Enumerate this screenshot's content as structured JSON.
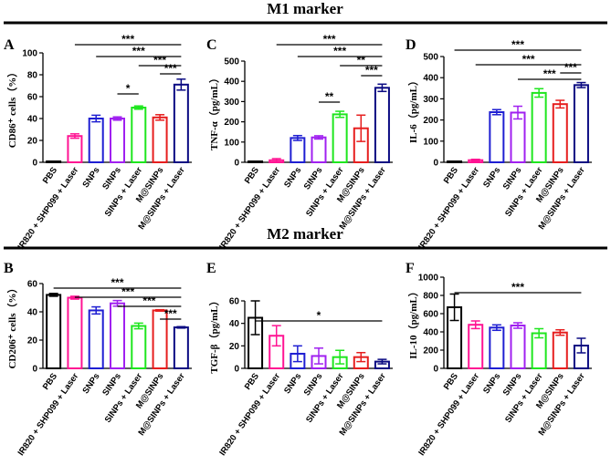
{
  "figure": {
    "sections": [
      {
        "title": "M1 marker"
      },
      {
        "title": "M2 marker"
      }
    ]
  },
  "chart_data": [
    {
      "panel": "A",
      "type": "bar",
      "section": "M1 marker",
      "ylabel": "CD86⁺ cells（%）",
      "ylim": [
        0,
        100
      ],
      "yticks": [
        0,
        20,
        40,
        60,
        80,
        100
      ],
      "categories": [
        "PBS",
        "IR820 + SHP099 + Laser",
        "SNPs",
        "SINPs",
        "SINPs + Laser",
        "M@SINPs",
        "M@SINPs + Laser"
      ],
      "values": [
        0.5,
        24,
        40,
        40,
        50,
        41,
        71
      ],
      "errors": [
        0.5,
        2,
        3,
        1.5,
        1.5,
        2.5,
        5
      ],
      "colors": [
        "#000000",
        "#ff1493",
        "#1e1ed2",
        "#a020f0",
        "#1ee61e",
        "#e61e1e",
        "#0a0a82"
      ],
      "significance": [
        {
          "from": 1,
          "to": 6,
          "label": "***"
        },
        {
          "from": 2,
          "to": 6,
          "label": "***"
        },
        {
          "from": 4,
          "to": 6,
          "label": "***"
        },
        {
          "from": 5,
          "to": 6,
          "label": "***"
        },
        {
          "from": 3,
          "to": 4,
          "label": "*"
        }
      ]
    },
    {
      "panel": "C",
      "type": "bar",
      "section": "M1 marker",
      "ylabel": "TNF-α（pg/mL）",
      "ylim": [
        0,
        500
      ],
      "yticks": [
        0,
        100,
        200,
        300,
        400,
        500
      ],
      "categories": [
        "PBS",
        "IR820 + SHP099 + Laser",
        "SNPs",
        "SINPs",
        "SINPs + Laser",
        "M@SINPs",
        "M@SINPs + Laser"
      ],
      "values": [
        2,
        10,
        120,
        123,
        237,
        168,
        368
      ],
      "errors": [
        1,
        8,
        12,
        8,
        15,
        65,
        18
      ],
      "colors": [
        "#000000",
        "#ff1493",
        "#1e1ed2",
        "#a020f0",
        "#1ee61e",
        "#e61e1e",
        "#0a0a82"
      ],
      "significance": [
        {
          "from": 1,
          "to": 6,
          "label": "***"
        },
        {
          "from": 2,
          "to": 6,
          "label": "***"
        },
        {
          "from": 4,
          "to": 6,
          "label": "**"
        },
        {
          "from": 5,
          "to": 6,
          "label": "***"
        },
        {
          "from": 3,
          "to": 4,
          "label": "**"
        }
      ]
    },
    {
      "panel": "D",
      "type": "bar",
      "section": "M1 marker",
      "ylabel": "IL-6（pg/mL）",
      "ylim": [
        0,
        500
      ],
      "yticks": [
        0,
        100,
        200,
        300,
        400,
        500
      ],
      "categories": [
        "PBS",
        "IR820 + SHP099 + Laser",
        "SNPs",
        "SINPs",
        "SINPs + Laser",
        "M@SINPs",
        "M@SINPs + Laser"
      ],
      "values": [
        2,
        10,
        237,
        235,
        328,
        275,
        365
      ],
      "errors": [
        1,
        4,
        12,
        30,
        20,
        18,
        12
      ],
      "colors": [
        "#000000",
        "#ff1493",
        "#1e1ed2",
        "#a020f0",
        "#1ee61e",
        "#e61e1e",
        "#0a0a82"
      ],
      "significance": [
        {
          "from": 0,
          "to": 6,
          "label": "***"
        },
        {
          "from": 1,
          "to": 6,
          "label": "***"
        },
        {
          "from": 3,
          "to": 6,
          "label": "***"
        },
        {
          "from": 5,
          "to": 6,
          "label": "***"
        }
      ]
    },
    {
      "panel": "B",
      "type": "bar",
      "section": "M2 marker",
      "ylabel": "CD206⁺ cells（%）",
      "ylim": [
        0,
        60
      ],
      "yticks": [
        0,
        20,
        40,
        60
      ],
      "categories": [
        "PBS",
        "IR820 + SHP099 + Laser",
        "SNPs",
        "SINPs",
        "SINPs + Laser",
        "M@SINPs",
        "M@SINPs + Laser"
      ],
      "values": [
        52,
        50,
        41,
        46,
        30,
        41,
        29
      ],
      "errors": [
        1,
        1,
        2.5,
        2,
        2,
        0.5,
        0.5
      ],
      "colors": [
        "#000000",
        "#ff1493",
        "#1e1ed2",
        "#a020f0",
        "#1ee61e",
        "#e61e1e",
        "#0a0a82"
      ],
      "significance": [
        {
          "from": 0,
          "to": 6,
          "label": "***"
        },
        {
          "from": 1,
          "to": 6,
          "label": "***"
        },
        {
          "from": 3,
          "to": 6,
          "label": "***"
        },
        {
          "from": 5,
          "to": 6,
          "label": "***"
        }
      ]
    },
    {
      "panel": "E",
      "type": "bar",
      "section": "M2 marker",
      "ylabel": "TGF-β（pg/mL）",
      "ylim": [
        0,
        60
      ],
      "yticks": [
        0,
        20,
        40,
        60
      ],
      "categories": [
        "PBS",
        "IR820 + SHP099 + Laser",
        "SNPs",
        "SINPs",
        "SINPs + Laser",
        "M@SINPs",
        "M@SINPs + Laser"
      ],
      "values": [
        45,
        29,
        13,
        11,
        10,
        10,
        6
      ],
      "errors": [
        15,
        9,
        7,
        7,
        6,
        4,
        2
      ],
      "colors": [
        "#000000",
        "#ff1493",
        "#1e1ed2",
        "#a020f0",
        "#1ee61e",
        "#e61e1e",
        "#0a0a82"
      ],
      "significance": [
        {
          "from": 0,
          "to": 6,
          "label": "*"
        }
      ]
    },
    {
      "panel": "F",
      "type": "bar",
      "section": "M2 marker",
      "ylabel": "IL-10（pg/mL）",
      "ylim": [
        0,
        1000
      ],
      "yticks": [
        0,
        200,
        400,
        600,
        800,
        1000
      ],
      "categories": [
        "PBS",
        "IR820 + SHP099 + Laser",
        "SNPs",
        "SINPs",
        "SINPs + Laser",
        "M@SINPs",
        "M@SINPs + Laser"
      ],
      "values": [
        670,
        478,
        447,
        470,
        385,
        393,
        250
      ],
      "errors": [
        145,
        42,
        30,
        30,
        50,
        30,
        80
      ],
      "colors": [
        "#000000",
        "#ff1493",
        "#1e1ed2",
        "#a020f0",
        "#1ee61e",
        "#e61e1e",
        "#0a0a82"
      ],
      "significance": [
        {
          "from": 0,
          "to": 6,
          "label": "***"
        }
      ]
    }
  ]
}
